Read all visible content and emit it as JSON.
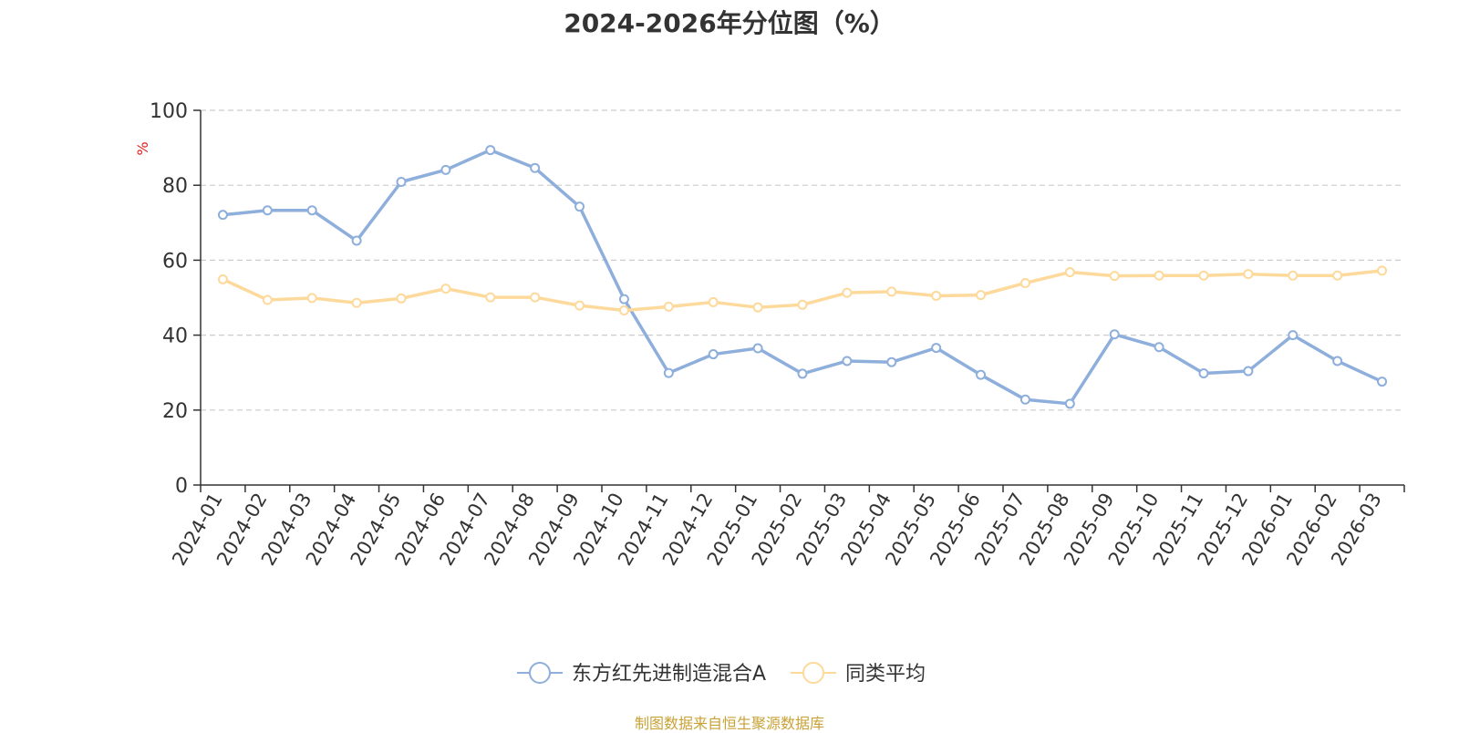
{
  "chart_data": {
    "type": "line",
    "title": "2024-2026年分位图（%）",
    "ylabel": "%",
    "ylim": [
      0,
      100
    ],
    "yticks": [
      0,
      20,
      40,
      60,
      80,
      100
    ],
    "grid": true,
    "legend_position": "bottom",
    "categories": [
      "2024-01",
      "2024-02",
      "2024-03",
      "2024-04",
      "2024-05",
      "2024-06",
      "2024-07",
      "2024-08",
      "2024-09",
      "2024-10",
      "2024-11",
      "2024-12",
      "2025-01",
      "2025-02",
      "2025-03",
      "2025-04",
      "2025-05",
      "2025-06",
      "2025-07",
      "2025-08",
      "2025-09",
      "2025-10",
      "2025-11",
      "2025-12",
      "2026-01",
      "2026-02",
      "2026-03"
    ],
    "series": [
      {
        "name": "东方红先进制造混合A",
        "color": "#8eaedb",
        "values": [
          72.1,
          73.3,
          73.3,
          65.2,
          80.9,
          84.1,
          89.4,
          84.6,
          74.3,
          49.6,
          29.9,
          34.9,
          36.5,
          29.7,
          33.1,
          32.8,
          36.6,
          29.4,
          22.8,
          21.7,
          40.2,
          36.8,
          29.8,
          30.4,
          40.0,
          33.1,
          27.6
        ]
      },
      {
        "name": "同类平均",
        "color": "#fdd99b",
        "values": [
          54.9,
          49.4,
          49.9,
          48.6,
          49.8,
          52.4,
          50.1,
          50.1,
          47.9,
          46.6,
          47.6,
          48.8,
          47.4,
          48.1,
          51.3,
          51.6,
          50.5,
          50.7,
          53.9,
          56.8,
          55.8,
          55.9,
          55.9,
          56.3,
          55.9,
          55.9,
          57.2
        ]
      }
    ]
  },
  "source_text": "制图数据来自恒生聚源数据库"
}
